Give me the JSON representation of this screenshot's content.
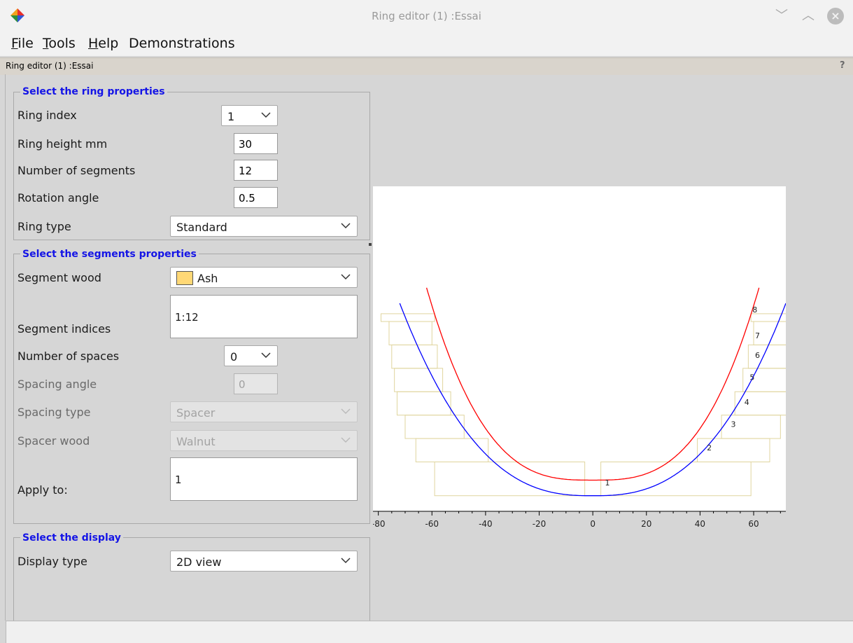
{
  "window": {
    "title": "Ring editor (1) :Essai"
  },
  "menu": [
    {
      "pre": "",
      "ul": "F",
      "post": "ile"
    },
    {
      "pre": "",
      "ul": "T",
      "post": "ools"
    },
    {
      "pre": "",
      "ul": "H",
      "post": "elp"
    },
    {
      "pre": "Demonstrations",
      "ul": "",
      "post": ""
    }
  ],
  "subtitle": {
    "text": "Ring editor (1) :Essai",
    "help": "?"
  },
  "ring_properties": {
    "title": "Select the ring properties",
    "ring_index_label": "Ring index",
    "ring_index_value": "1",
    "ring_height_label": "Ring height mm",
    "ring_height_value": "30",
    "num_segments_label": "Number of segments",
    "num_segments_value": "12",
    "rotation_label": "Rotation angle",
    "rotation_value": "0.5",
    "ring_type_label": "Ring type",
    "ring_type_value": "Standard"
  },
  "segment_properties": {
    "title": "Select the segments properties",
    "wood_label": "Segment wood",
    "wood_value": "Ash",
    "wood_color": "#ffd876",
    "indices_label": "Segment indices",
    "indices_value": "1:12",
    "num_spaces_label": "Number of spaces",
    "num_spaces_value": "0",
    "spacing_angle_label": "Spacing angle",
    "spacing_angle_value": "0",
    "spacing_type_label": "Spacing type",
    "spacing_type_value": "Spacer",
    "spacer_wood_label": "Spacer wood",
    "spacer_wood_value": "Walnut",
    "apply_label": "Apply to:",
    "apply_value": "1"
  },
  "display": {
    "title": "Select the display",
    "type_label": "Display type",
    "type_value": "2D view"
  },
  "chart_data": {
    "type": "line",
    "xlim": [
      -82,
      72
    ],
    "ylim": [
      0,
      250
    ],
    "x_ticks": [
      -80,
      -60,
      -40,
      -20,
      0,
      20,
      40,
      60
    ],
    "ring_labels": [
      "1",
      "2",
      "3",
      "4",
      "5",
      "6",
      "7",
      "8"
    ],
    "colors": {
      "outer": "#0000ff",
      "inner": "#ff0000",
      "rings": "#e0d59e"
    }
  }
}
